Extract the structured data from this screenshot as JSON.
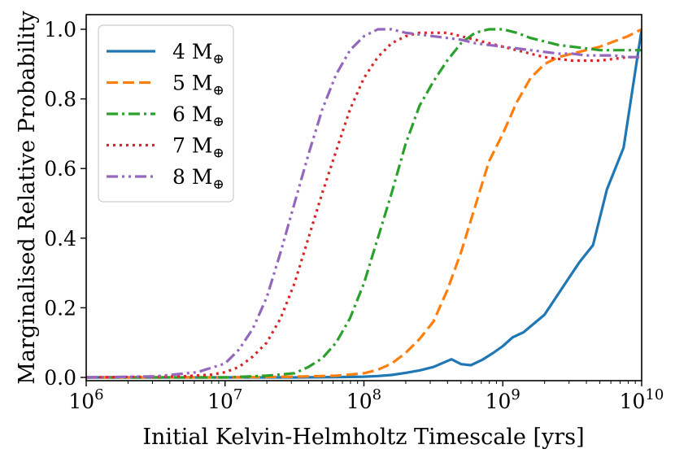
{
  "chart_data": {
    "type": "line",
    "title": "",
    "xlabel": "Initial Kelvin-Helmholtz Timescale [yrs]",
    "ylabel": "Marginalised Relative Probability",
    "xscale": "log",
    "xlim_log10": [
      6,
      10
    ],
    "ylim": [
      0,
      1.02
    ],
    "x_ticks": [
      {
        "log10": 6,
        "base": "10",
        "exp": "6"
      },
      {
        "log10": 7,
        "base": "10",
        "exp": "7"
      },
      {
        "log10": 8,
        "base": "10",
        "exp": "8"
      },
      {
        "log10": 9,
        "base": "10",
        "exp": "9"
      },
      {
        "log10": 10,
        "base": "10",
        "exp": "10"
      }
    ],
    "y_ticks": [
      {
        "value": 0.0,
        "label": "0.0"
      },
      {
        "value": 0.2,
        "label": "0.2"
      },
      {
        "value": 0.4,
        "label": "0.4"
      },
      {
        "value": 0.6,
        "label": "0.6"
      },
      {
        "value": 0.8,
        "label": "0.8"
      },
      {
        "value": 1.0,
        "label": "1.0"
      }
    ],
    "legend_position": "upper-left",
    "series": [
      {
        "name": "4 M",
        "subscript": "⊕",
        "color": "#1f77b4",
        "dash": "solid",
        "x_log10": [
          6.0,
          7.0,
          7.5,
          7.8,
          8.0,
          8.1,
          8.2,
          8.3,
          8.4,
          8.5,
          8.63,
          8.7,
          8.77,
          8.85,
          8.93,
          9.0,
          9.07,
          9.15,
          9.3,
          9.45,
          9.55,
          9.65,
          9.75,
          9.87,
          10.0
        ],
        "values": [
          0.0,
          0.0,
          0.0,
          0.001,
          0.002,
          0.004,
          0.007,
          0.013,
          0.02,
          0.03,
          0.052,
          0.038,
          0.035,
          0.05,
          0.07,
          0.09,
          0.115,
          0.13,
          0.18,
          0.27,
          0.33,
          0.38,
          0.54,
          0.66,
          1.0
        ]
      },
      {
        "name": "5 M",
        "subscript": "⊕",
        "color": "#ff7f0e",
        "dash": "dashed",
        "x_log10": [
          6.0,
          7.0,
          7.5,
          7.8,
          8.0,
          8.1,
          8.2,
          8.3,
          8.4,
          8.5,
          8.6,
          8.7,
          8.8,
          8.9,
          9.0,
          9.1,
          9.2,
          9.3,
          9.4,
          9.5,
          9.6,
          9.7,
          9.8,
          9.9,
          10.0
        ],
        "values": [
          0.0,
          0.0,
          0.002,
          0.005,
          0.012,
          0.022,
          0.04,
          0.07,
          0.11,
          0.16,
          0.25,
          0.36,
          0.49,
          0.62,
          0.7,
          0.79,
          0.86,
          0.9,
          0.92,
          0.93,
          0.94,
          0.95,
          0.965,
          0.98,
          1.0
        ]
      },
      {
        "name": "6 M",
        "subscript": "⊕",
        "color": "#2ca02c",
        "dash": "dashdot",
        "x_log10": [
          6.0,
          7.0,
          7.3,
          7.5,
          7.6,
          7.7,
          7.8,
          7.9,
          8.0,
          8.1,
          8.2,
          8.3,
          8.4,
          8.5,
          8.6,
          8.7,
          8.8,
          8.9,
          9.0,
          9.1,
          9.2,
          9.3,
          9.4,
          9.5,
          9.6,
          9.7,
          9.8,
          9.9,
          10.0
        ],
        "values": [
          0.0,
          0.0,
          0.005,
          0.012,
          0.03,
          0.055,
          0.1,
          0.17,
          0.27,
          0.4,
          0.53,
          0.67,
          0.78,
          0.85,
          0.91,
          0.96,
          0.99,
          1.0,
          1.0,
          0.99,
          0.975,
          0.965,
          0.955,
          0.95,
          0.945,
          0.94,
          0.94,
          0.94,
          0.94
        ]
      },
      {
        "name": "7 M",
        "subscript": "⊕",
        "color": "#d62728",
        "dash": "dotted",
        "x_log10": [
          6.0,
          6.7,
          6.9,
          7.0,
          7.1,
          7.2,
          7.3,
          7.4,
          7.5,
          7.6,
          7.7,
          7.8,
          7.9,
          8.0,
          8.1,
          8.2,
          8.3,
          8.4,
          8.5,
          8.6,
          8.7,
          8.8,
          8.9,
          9.0,
          9.1,
          9.2,
          9.3,
          9.4,
          9.5,
          9.6,
          9.7,
          9.8,
          9.9,
          10.0
        ],
        "values": [
          0.0,
          0.003,
          0.008,
          0.015,
          0.03,
          0.06,
          0.1,
          0.17,
          0.27,
          0.4,
          0.53,
          0.65,
          0.77,
          0.86,
          0.92,
          0.96,
          0.98,
          0.99,
          0.99,
          0.99,
          0.98,
          0.97,
          0.96,
          0.95,
          0.94,
          0.93,
          0.92,
          0.915,
          0.91,
          0.91,
          0.91,
          0.915,
          0.92,
          0.92
        ]
      },
      {
        "name": "8 M",
        "subscript": "⊕",
        "color": "#9467bd",
        "dash": "dashdotdot",
        "x_log10": [
          6.0,
          6.5,
          6.8,
          7.0,
          7.1,
          7.2,
          7.3,
          7.4,
          7.5,
          7.6,
          7.7,
          7.8,
          7.9,
          8.0,
          8.1,
          8.2,
          8.3,
          8.4,
          8.5,
          8.6,
          8.7,
          8.8,
          8.9,
          9.0,
          9.1,
          9.2,
          9.3,
          9.4,
          9.5,
          9.6,
          9.7,
          9.8,
          9.9,
          10.0
        ],
        "values": [
          0.0,
          0.003,
          0.015,
          0.04,
          0.08,
          0.14,
          0.23,
          0.36,
          0.5,
          0.64,
          0.77,
          0.87,
          0.94,
          0.98,
          1.0,
          1.0,
          0.99,
          0.985,
          0.98,
          0.975,
          0.97,
          0.96,
          0.955,
          0.95,
          0.945,
          0.94,
          0.935,
          0.93,
          0.93,
          0.925,
          0.925,
          0.925,
          0.92,
          0.92
        ]
      }
    ]
  }
}
